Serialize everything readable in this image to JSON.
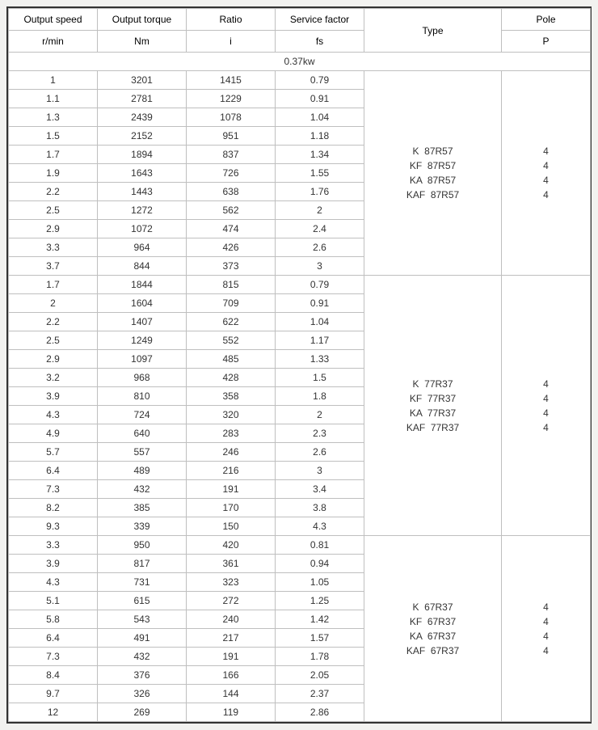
{
  "columns": [
    {
      "head1": "Output speed",
      "head2": "r/min",
      "width": 110
    },
    {
      "head1": "Output torque",
      "head2": "Nm",
      "width": 110
    },
    {
      "head1": "Ratio",
      "head2": "i",
      "width": 110
    },
    {
      "head1": "Service factor",
      "head2": "fs",
      "width": 110
    },
    {
      "head1": "Type",
      "head2": "",
      "width": 170
    },
    {
      "head1": "Pole",
      "head2": "P",
      "width": 110
    }
  ],
  "power_label": "0.37kw",
  "groups": [
    {
      "types": [
        "K  87R57",
        "KF  87R57",
        "KA  87R57",
        "KAF  87R57"
      ],
      "poles": [
        "4",
        "4",
        "4",
        "4"
      ],
      "rows": [
        [
          "1",
          "3201",
          "1415",
          "0.79"
        ],
        [
          "1.1",
          "2781",
          "1229",
          "0.91"
        ],
        [
          "1.3",
          "2439",
          "1078",
          "1.04"
        ],
        [
          "1.5",
          "2152",
          "951",
          "1.18"
        ],
        [
          "1.7",
          "1894",
          "837",
          "1.34"
        ],
        [
          "1.9",
          "1643",
          "726",
          "1.55"
        ],
        [
          "2.2",
          "1443",
          "638",
          "1.76"
        ],
        [
          "2.5",
          "1272",
          "562",
          "2"
        ],
        [
          "2.9",
          "1072",
          "474",
          "2.4"
        ],
        [
          "3.3",
          "964",
          "426",
          "2.6"
        ],
        [
          "3.7",
          "844",
          "373",
          "3"
        ]
      ]
    },
    {
      "types": [
        "K  77R37",
        "KF  77R37",
        "KA  77R37",
        "KAF  77R37"
      ],
      "poles": [
        "4",
        "4",
        "4",
        "4"
      ],
      "rows": [
        [
          "1.7",
          "1844",
          "815",
          "0.79"
        ],
        [
          "2",
          "1604",
          "709",
          "0.91"
        ],
        [
          "2.2",
          "1407",
          "622",
          "1.04"
        ],
        [
          "2.5",
          "1249",
          "552",
          "1.17"
        ],
        [
          "2.9",
          "1097",
          "485",
          "1.33"
        ],
        [
          "3.2",
          "968",
          "428",
          "1.5"
        ],
        [
          "3.9",
          "810",
          "358",
          "1.8"
        ],
        [
          "4.3",
          "724",
          "320",
          "2"
        ],
        [
          "4.9",
          "640",
          "283",
          "2.3"
        ],
        [
          "5.7",
          "557",
          "246",
          "2.6"
        ],
        [
          "6.4",
          "489",
          "216",
          "3"
        ],
        [
          "7.3",
          "432",
          "191",
          "3.4"
        ],
        [
          "8.2",
          "385",
          "170",
          "3.8"
        ],
        [
          "9.3",
          "339",
          "150",
          "4.3"
        ]
      ]
    },
    {
      "types": [
        "K  67R37",
        "KF  67R37",
        "KA  67R37",
        "KAF  67R37"
      ],
      "poles": [
        "4",
        "4",
        "4",
        "4"
      ],
      "rows": [
        [
          "3.3",
          "950",
          "420",
          "0.81"
        ],
        [
          "3.9",
          "817",
          "361",
          "0.94"
        ],
        [
          "4.3",
          "731",
          "323",
          "1.05"
        ],
        [
          "5.1",
          "615",
          "272",
          "1.25"
        ],
        [
          "5.8",
          "543",
          "240",
          "1.42"
        ],
        [
          "6.4",
          "491",
          "217",
          "1.57"
        ],
        [
          "7.3",
          "432",
          "191",
          "1.78"
        ],
        [
          "8.4",
          "376",
          "166",
          "2.05"
        ],
        [
          "9.7",
          "326",
          "144",
          "2.37"
        ],
        [
          "12",
          "269",
          "119",
          "2.86"
        ]
      ]
    }
  ]
}
